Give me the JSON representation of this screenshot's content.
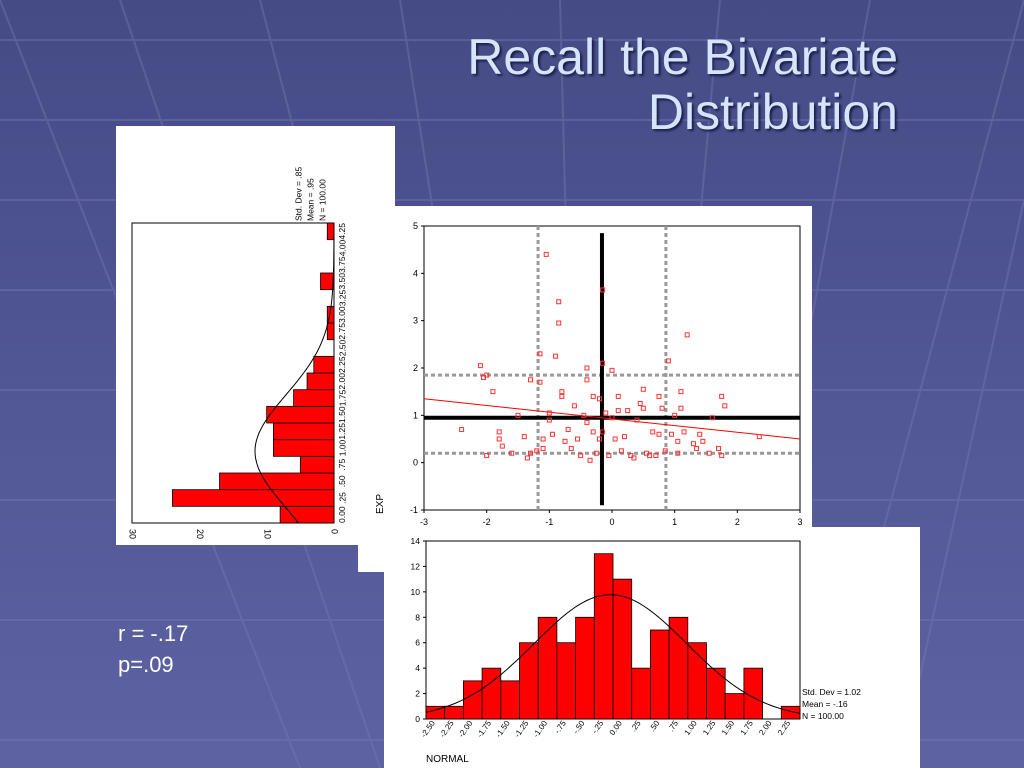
{
  "slide": {
    "title_line1": "Recall the Bivariate",
    "title_line2": "Distribution",
    "r_text": "r = -.17",
    "p_text": "p=.09"
  },
  "colors": {
    "bar": "#ff0000",
    "curve": "#000000",
    "point": "#ff3333",
    "regression": "#ff0000"
  },
  "chart_data": [
    {
      "type": "bar",
      "orientation": "horizontal",
      "title": "",
      "xlabel": "",
      "ylabel": "",
      "count_ticks": [
        "30",
        "20",
        "10",
        "0"
      ],
      "bin_labels": [
        "0.00",
        ".25",
        ".50",
        ".75",
        "1.00",
        "1.25",
        "1.50",
        "1.75",
        "2.00",
        "2.25",
        "2.50",
        "2.75",
        "3.00",
        "3.25",
        "3.50",
        "3.75",
        "4.00",
        "4.25"
      ],
      "categories": [
        0.0,
        0.25,
        0.5,
        0.75,
        1.0,
        1.25,
        1.5,
        1.75,
        2.0,
        2.25,
        2.5,
        2.75,
        3.0,
        3.25,
        3.5,
        3.75,
        4.0,
        4.25
      ],
      "values": [
        8,
        24,
        17,
        5,
        9,
        9,
        10,
        6,
        4,
        3,
        0,
        1,
        1,
        0,
        2,
        0,
        0,
        1
      ],
      "xlim": [
        0,
        30
      ],
      "stats": [
        "Std. Dev = .85",
        "Mean = .95",
        "N = 100.00"
      ],
      "normal_curve": {
        "mean": 0.95,
        "sd": 0.85,
        "n": 100,
        "bin_width": 0.25
      }
    },
    {
      "type": "scatter",
      "title": "",
      "xlabel": "",
      "ylabel": "EXP",
      "xlim": [
        -3,
        3
      ],
      "ylim": [
        -1,
        5
      ],
      "x_ticks": [
        "-3",
        "-2",
        "-1",
        "0",
        "1",
        "2",
        "3"
      ],
      "y_ticks": [
        "-1",
        "0",
        "1",
        "2",
        "3",
        "4",
        "5"
      ],
      "mean_x": -0.16,
      "mean_y": 0.95,
      "sd_lines_x": [
        -1.18,
        0.86
      ],
      "sd_lines_y": [
        0.2,
        1.85
      ],
      "regression": {
        "x": [
          -3,
          3
        ],
        "y": [
          1.35,
          0.5
        ]
      },
      "points": [
        [
          -2.4,
          0.7
        ],
        [
          -2.1,
          2.05
        ],
        [
          -2.05,
          1.8
        ],
        [
          -2.0,
          1.85
        ],
        [
          -2.0,
          0.15
        ],
        [
          -1.9,
          1.5
        ],
        [
          -1.8,
          0.65
        ],
        [
          -1.8,
          0.5
        ],
        [
          -1.75,
          0.35
        ],
        [
          -1.6,
          0.2
        ],
        [
          -1.5,
          1.0
        ],
        [
          -1.4,
          0.55
        ],
        [
          -1.35,
          0.1
        ],
        [
          -1.3,
          1.75
        ],
        [
          -1.3,
          0.2
        ],
        [
          -1.2,
          0.25
        ],
        [
          -1.15,
          2.3
        ],
        [
          -1.15,
          1.7
        ],
        [
          -1.1,
          0.5
        ],
        [
          -1.1,
          0.3
        ],
        [
          -1.05,
          4.4
        ],
        [
          -1.0,
          1.05
        ],
        [
          -1.0,
          0.9
        ],
        [
          -0.95,
          0.6
        ],
        [
          -0.9,
          2.25
        ],
        [
          -0.85,
          3.4
        ],
        [
          -0.85,
          2.95
        ],
        [
          -0.8,
          1.5
        ],
        [
          -0.8,
          1.4
        ],
        [
          -0.75,
          0.45
        ],
        [
          -0.7,
          0.7
        ],
        [
          -0.65,
          0.3
        ],
        [
          -0.6,
          1.2
        ],
        [
          -0.55,
          0.5
        ],
        [
          -0.5,
          0.15
        ],
        [
          -0.45,
          1.0
        ],
        [
          -0.4,
          2.0
        ],
        [
          -0.4,
          1.75
        ],
        [
          -0.4,
          0.85
        ],
        [
          -0.35,
          0.05
        ],
        [
          -0.3,
          1.4
        ],
        [
          -0.3,
          0.65
        ],
        [
          -0.25,
          0.2
        ],
        [
          -0.2,
          1.35
        ],
        [
          -0.2,
          0.5
        ],
        [
          -0.15,
          3.65
        ],
        [
          -0.15,
          2.1
        ],
        [
          -0.15,
          0.65
        ],
        [
          -0.1,
          1.05
        ],
        [
          -0.05,
          0.15
        ],
        [
          0.0,
          1.95
        ],
        [
          0.0,
          0.95
        ],
        [
          0.05,
          0.5
        ],
        [
          0.1,
          1.4
        ],
        [
          0.1,
          1.1
        ],
        [
          0.15,
          0.25
        ],
        [
          0.2,
          0.55
        ],
        [
          0.25,
          1.1
        ],
        [
          0.3,
          0.15
        ],
        [
          0.35,
          0.1
        ],
        [
          0.4,
          0.9
        ],
        [
          0.45,
          1.25
        ],
        [
          0.5,
          1.55
        ],
        [
          0.5,
          1.15
        ],
        [
          0.55,
          0.2
        ],
        [
          0.6,
          0.15
        ],
        [
          0.65,
          0.65
        ],
        [
          0.7,
          0.15
        ],
        [
          0.75,
          1.4
        ],
        [
          0.75,
          0.6
        ],
        [
          0.8,
          1.15
        ],
        [
          0.85,
          0.25
        ],
        [
          0.9,
          2.15
        ],
        [
          0.95,
          0.6
        ],
        [
          1.0,
          1.0
        ],
        [
          1.05,
          0.45
        ],
        [
          1.05,
          0.2
        ],
        [
          1.1,
          1.5
        ],
        [
          1.1,
          1.15
        ],
        [
          1.15,
          0.65
        ],
        [
          1.2,
          2.7
        ],
        [
          1.3,
          0.4
        ],
        [
          1.35,
          0.3
        ],
        [
          1.4,
          0.6
        ],
        [
          1.45,
          0.45
        ],
        [
          1.55,
          0.2
        ],
        [
          1.6,
          0.95
        ],
        [
          1.7,
          0.3
        ],
        [
          1.75,
          1.4
        ],
        [
          1.75,
          0.15
        ],
        [
          1.8,
          1.2
        ],
        [
          2.35,
          0.55
        ]
      ]
    },
    {
      "type": "bar",
      "title": "",
      "xlabel": "NORMAL",
      "ylabel": "",
      "bin_labels": [
        "-2.50",
        "-2.25",
        "-2.00",
        "-1.75",
        "-1.50",
        "-1.25",
        "-1.00",
        "-.75",
        "-.50",
        "-.25",
        "0.00",
        ".25",
        ".50",
        ".75",
        "1.00",
        "1.25",
        "1.50",
        "1.75",
        "2.00",
        "2.25"
      ],
      "categories": [
        -2.5,
        -2.25,
        -2.0,
        -1.75,
        -1.5,
        -1.25,
        -1.0,
        -0.75,
        -0.5,
        -0.25,
        0.0,
        0.25,
        0.5,
        0.75,
        1.0,
        1.25,
        1.5,
        1.75,
        2.0,
        2.25
      ],
      "values": [
        1,
        1,
        3,
        4,
        3,
        6,
        8,
        6,
        8,
        13,
        11,
        4,
        7,
        8,
        6,
        4,
        2,
        4,
        0,
        1
      ],
      "ylim": [
        0,
        14
      ],
      "y_ticks": [
        "0",
        "2",
        "4",
        "6",
        "8",
        "10",
        "12",
        "14"
      ],
      "stats": [
        "Std. Dev = 1.02",
        "Mean = -.16",
        "N = 100.00"
      ],
      "normal_curve": {
        "mean": -0.16,
        "sd": 1.02,
        "n": 100,
        "bin_width": 0.25
      }
    }
  ]
}
